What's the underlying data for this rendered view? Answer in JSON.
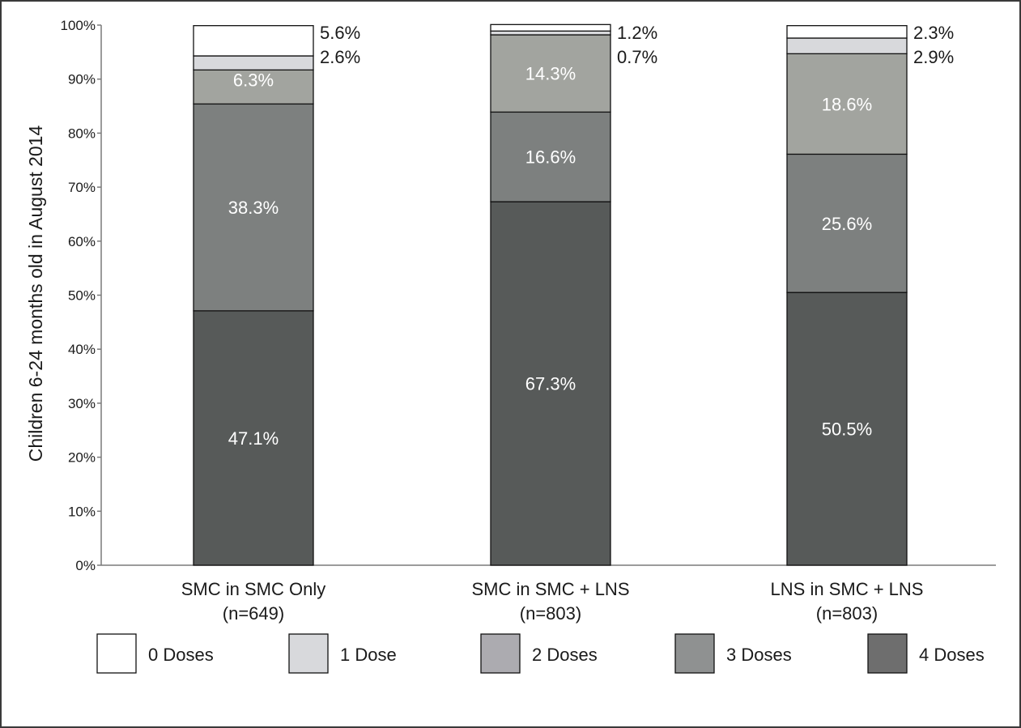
{
  "chart_data": {
    "type": "bar",
    "stacked": true,
    "percent": true,
    "ylabel": "Children 6-24 months old in August 2014",
    "ylim": [
      0,
      100
    ],
    "yticks": [
      "0%",
      "10%",
      "20%",
      "30%",
      "40%",
      "50%",
      "60%",
      "70%",
      "80%",
      "90%",
      "100%"
    ],
    "categories": [
      {
        "line1": "SMC in SMC Only",
        "line2": "(n=649)"
      },
      {
        "line1": "SMC in SMC + LNS",
        "line2": "(n=803)"
      },
      {
        "line1": "LNS in SMC + LNS",
        "line2": "(n=803)"
      }
    ],
    "series": [
      {
        "name": "4 Doses",
        "values": [
          47.1,
          67.3,
          50.5
        ],
        "labels": [
          "47.1%",
          "67.3%",
          "50.5%"
        ],
        "fill": "#575a59",
        "legend_fill": "#6e6e6e"
      },
      {
        "name": "3 Doses",
        "values": [
          38.3,
          16.6,
          25.6
        ],
        "labels": [
          "38.3%",
          "16.6%",
          "25.6%"
        ],
        "fill": "#7d807f",
        "legend_fill": "#8f9191"
      },
      {
        "name": "2 Doses",
        "values": [
          6.3,
          14.3,
          18.6
        ],
        "labels": [
          "6.3%",
          "14.3%",
          "18.6%"
        ],
        "fill": "#a2a49f",
        "legend_fill": "#acabb0"
      },
      {
        "name": "1 Dose",
        "values": [
          2.6,
          0.7,
          2.9
        ],
        "labels": [
          "2.6%",
          "0.7%",
          "2.9%"
        ],
        "fill": "#d8d9dc",
        "legend_fill": "#d8d9dc"
      },
      {
        "name": "0 Doses",
        "values": [
          5.6,
          1.2,
          2.3
        ],
        "labels": [
          "5.6%",
          "1.2%",
          "2.3%"
        ],
        "fill": "#ffffff",
        "legend_fill": "#ffffff"
      }
    ],
    "legend_order": [
      "0 Doses",
      "1 Dose",
      "2 Doses",
      "3 Doses",
      "4 Doses"
    ],
    "legend_position": "bottom",
    "grid": false,
    "colors": {
      "axis": "#7a7a7a",
      "inside_label": "#ffffff",
      "outside_label": "#1a1a1a",
      "text": "#1a1a1a"
    }
  }
}
